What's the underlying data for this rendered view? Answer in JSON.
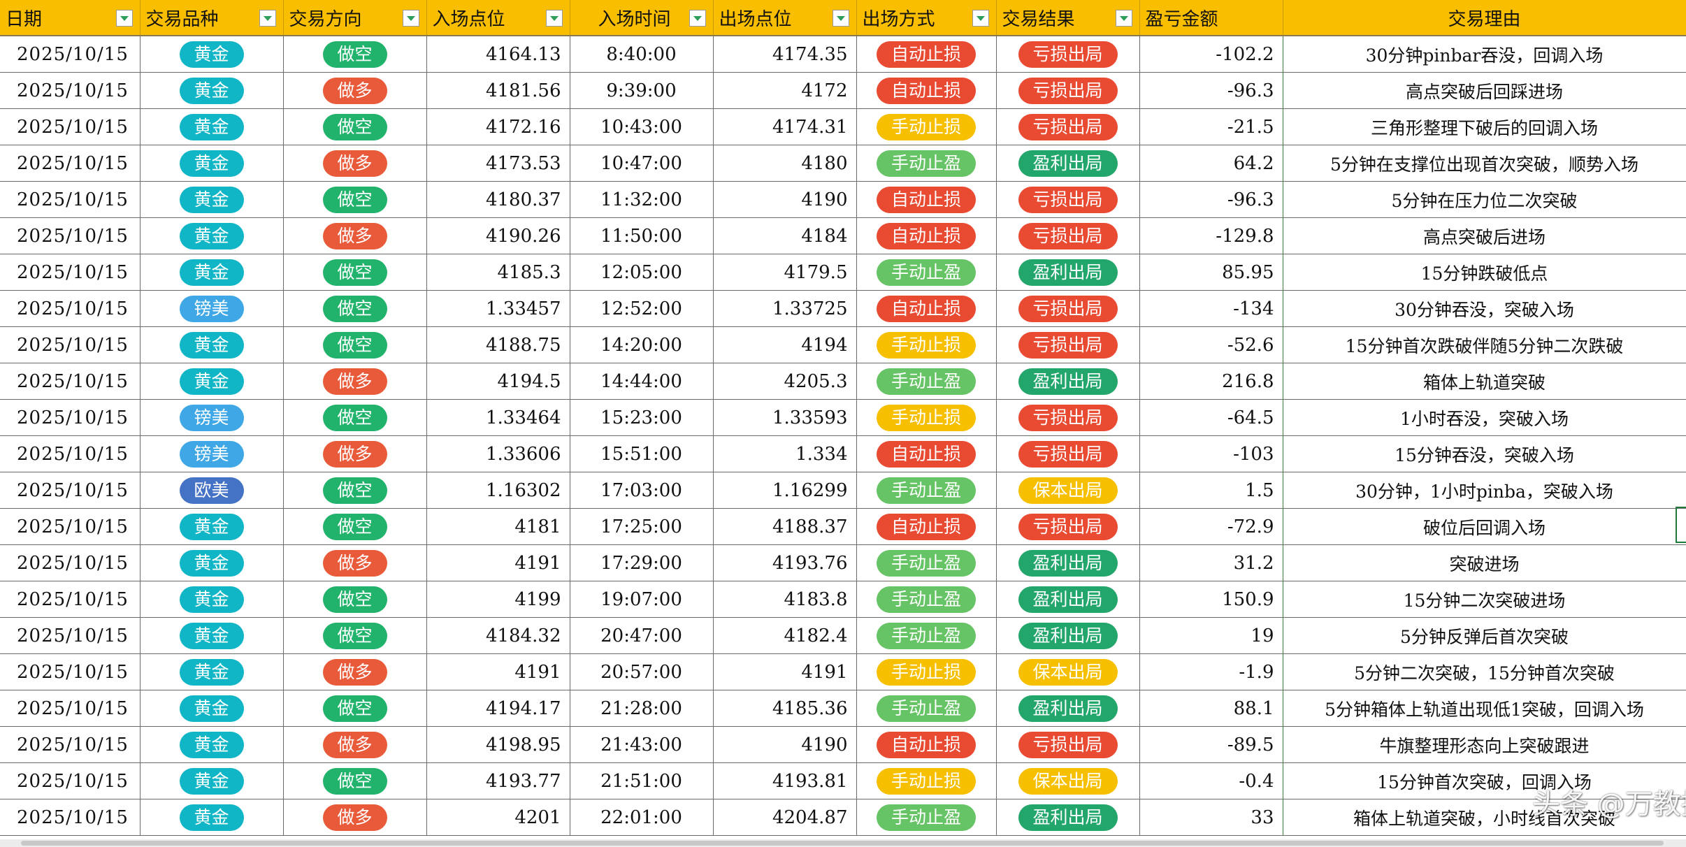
{
  "headers": [
    "日期",
    "交易品种",
    "交易方向",
    "入场点位",
    "入场时间",
    "出场点位",
    "出场方式",
    "交易结果",
    "盈亏金额",
    "交易理由"
  ],
  "tag_colors": {
    "黄金": "#10B5C6",
    "镑美": "#3FA7E6",
    "欧美": "#4472C4",
    "做空": "#21B36B",
    "做多": "#E95A3A",
    "自动止损": "#E84A32",
    "手动止损": "#F6C000",
    "手动止盈": "#67C466",
    "亏损出局": "#E84A32",
    "盈利出局": "#22A66C",
    "保本出局": "#F6C000"
  },
  "rows": [
    {
      "date": "2025/10/15",
      "symbol": "黄金",
      "direction": "做空",
      "entry_price": "4164.13",
      "entry_time": "8:40:00",
      "exit_price": "4174.35",
      "exit_method": "自动止损",
      "result": "亏损出局",
      "pnl": "-102.2",
      "reason": "30分钟pinbar吞没，回调入场"
    },
    {
      "date": "2025/10/15",
      "symbol": "黄金",
      "direction": "做多",
      "entry_price": "4181.56",
      "entry_time": "9:39:00",
      "exit_price": "4172",
      "exit_method": "自动止损",
      "result": "亏损出局",
      "pnl": "-96.3",
      "reason": "高点突破后回踩进场"
    },
    {
      "date": "2025/10/15",
      "symbol": "黄金",
      "direction": "做空",
      "entry_price": "4172.16",
      "entry_time": "10:43:00",
      "exit_price": "4174.31",
      "exit_method": "手动止损",
      "result": "亏损出局",
      "pnl": "-21.5",
      "reason": "三角形整理下破后的回调入场"
    },
    {
      "date": "2025/10/15",
      "symbol": "黄金",
      "direction": "做多",
      "entry_price": "4173.53",
      "entry_time": "10:47:00",
      "exit_price": "4180",
      "exit_method": "手动止盈",
      "result": "盈利出局",
      "pnl": "64.2",
      "reason": "5分钟在支撑位出现首次突破，顺势入场"
    },
    {
      "date": "2025/10/15",
      "symbol": "黄金",
      "direction": "做空",
      "entry_price": "4180.37",
      "entry_time": "11:32:00",
      "exit_price": "4190",
      "exit_method": "自动止损",
      "result": "亏损出局",
      "pnl": "-96.3",
      "reason": "5分钟在压力位二次突破"
    },
    {
      "date": "2025/10/15",
      "symbol": "黄金",
      "direction": "做多",
      "entry_price": "4190.26",
      "entry_time": "11:50:00",
      "exit_price": "4184",
      "exit_method": "自动止损",
      "result": "亏损出局",
      "pnl": "-129.8",
      "reason": "高点突破后进场"
    },
    {
      "date": "2025/10/15",
      "symbol": "黄金",
      "direction": "做空",
      "entry_price": "4185.3",
      "entry_time": "12:05:00",
      "exit_price": "4179.5",
      "exit_method": "手动止盈",
      "result": "盈利出局",
      "pnl": "85.95",
      "reason": "15分钟跌破低点"
    },
    {
      "date": "2025/10/15",
      "symbol": "镑美",
      "direction": "做空",
      "entry_price": "1.33457",
      "entry_time": "12:52:00",
      "exit_price": "1.33725",
      "exit_method": "自动止损",
      "result": "亏损出局",
      "pnl": "-134",
      "reason": "30分钟吞没，突破入场"
    },
    {
      "date": "2025/10/15",
      "symbol": "黄金",
      "direction": "做空",
      "entry_price": "4188.75",
      "entry_time": "14:20:00",
      "exit_price": "4194",
      "exit_method": "手动止损",
      "result": "亏损出局",
      "pnl": "-52.6",
      "reason": "15分钟首次跌破伴随5分钟二次跌破"
    },
    {
      "date": "2025/10/15",
      "symbol": "黄金",
      "direction": "做多",
      "entry_price": "4194.5",
      "entry_time": "14:44:00",
      "exit_price": "4205.3",
      "exit_method": "手动止盈",
      "result": "盈利出局",
      "pnl": "216.8",
      "reason": "箱体上轨道突破"
    },
    {
      "date": "2025/10/15",
      "symbol": "镑美",
      "direction": "做空",
      "entry_price": "1.33464",
      "entry_time": "15:23:00",
      "exit_price": "1.33593",
      "exit_method": "手动止损",
      "result": "亏损出局",
      "pnl": "-64.5",
      "reason": "1小时吞没，突破入场"
    },
    {
      "date": "2025/10/15",
      "symbol": "镑美",
      "direction": "做多",
      "entry_price": "1.33606",
      "entry_time": "15:51:00",
      "exit_price": "1.334",
      "exit_method": "自动止损",
      "result": "亏损出局",
      "pnl": "-103",
      "reason": "15分钟吞没，突破入场"
    },
    {
      "date": "2025/10/15",
      "symbol": "欧美",
      "direction": "做空",
      "entry_price": "1.16302",
      "entry_time": "17:03:00",
      "exit_price": "1.16299",
      "exit_method": "手动止盈",
      "result": "保本出局",
      "pnl": "1.5",
      "reason": "30分钟，1小时pinba，突破入场"
    },
    {
      "date": "2025/10/15",
      "symbol": "黄金",
      "direction": "做空",
      "entry_price": "4181",
      "entry_time": "17:25:00",
      "exit_price": "4188.37",
      "exit_method": "自动止损",
      "result": "亏损出局",
      "pnl": "-72.9",
      "reason": "破位后回调入场"
    },
    {
      "date": "2025/10/15",
      "symbol": "黄金",
      "direction": "做多",
      "entry_price": "4191",
      "entry_time": "17:29:00",
      "exit_price": "4193.76",
      "exit_method": "手动止盈",
      "result": "盈利出局",
      "pnl": "31.2",
      "reason": "突破进场"
    },
    {
      "date": "2025/10/15",
      "symbol": "黄金",
      "direction": "做空",
      "entry_price": "4199",
      "entry_time": "19:07:00",
      "exit_price": "4183.8",
      "exit_method": "手动止盈",
      "result": "盈利出局",
      "pnl": "150.9",
      "reason": "15分钟二次突破进场"
    },
    {
      "date": "2025/10/15",
      "symbol": "黄金",
      "direction": "做空",
      "entry_price": "4184.32",
      "entry_time": "20:47:00",
      "exit_price": "4182.4",
      "exit_method": "手动止盈",
      "result": "盈利出局",
      "pnl": "19",
      "reason": "5分钟反弹后首次突破"
    },
    {
      "date": "2025/10/15",
      "symbol": "黄金",
      "direction": "做多",
      "entry_price": "4191",
      "entry_time": "20:57:00",
      "exit_price": "4191",
      "exit_method": "手动止损",
      "result": "保本出局",
      "pnl": "-1.9",
      "reason": "5分钟二次突破，15分钟首次突破"
    },
    {
      "date": "2025/10/15",
      "symbol": "黄金",
      "direction": "做空",
      "entry_price": "4194.17",
      "entry_time": "21:28:00",
      "exit_price": "4185.36",
      "exit_method": "手动止盈",
      "result": "盈利出局",
      "pnl": "88.1",
      "reason": "5分钟箱体上轨道出现低1突破，回调入场"
    },
    {
      "date": "2025/10/15",
      "symbol": "黄金",
      "direction": "做多",
      "entry_price": "4198.95",
      "entry_time": "21:43:00",
      "exit_price": "4190",
      "exit_method": "自动止损",
      "result": "亏损出局",
      "pnl": "-89.5",
      "reason": "牛旗整理形态向上突破跟进"
    },
    {
      "date": "2025/10/15",
      "symbol": "黄金",
      "direction": "做空",
      "entry_price": "4193.77",
      "entry_time": "21:51:00",
      "exit_price": "4193.81",
      "exit_method": "手动止损",
      "result": "保本出局",
      "pnl": "-0.4",
      "reason": "15分钟首次突破，回调入场"
    },
    {
      "date": "2025/10/15",
      "symbol": "黄金",
      "direction": "做多",
      "entry_price": "4201",
      "entry_time": "22:01:00",
      "exit_price": "4204.87",
      "exit_method": "手动止盈",
      "result": "盈利出局",
      "pnl": "33",
      "reason": "箱体上轨道突破，小时线首次突破"
    }
  ],
  "watermark": "头条 @万教授"
}
